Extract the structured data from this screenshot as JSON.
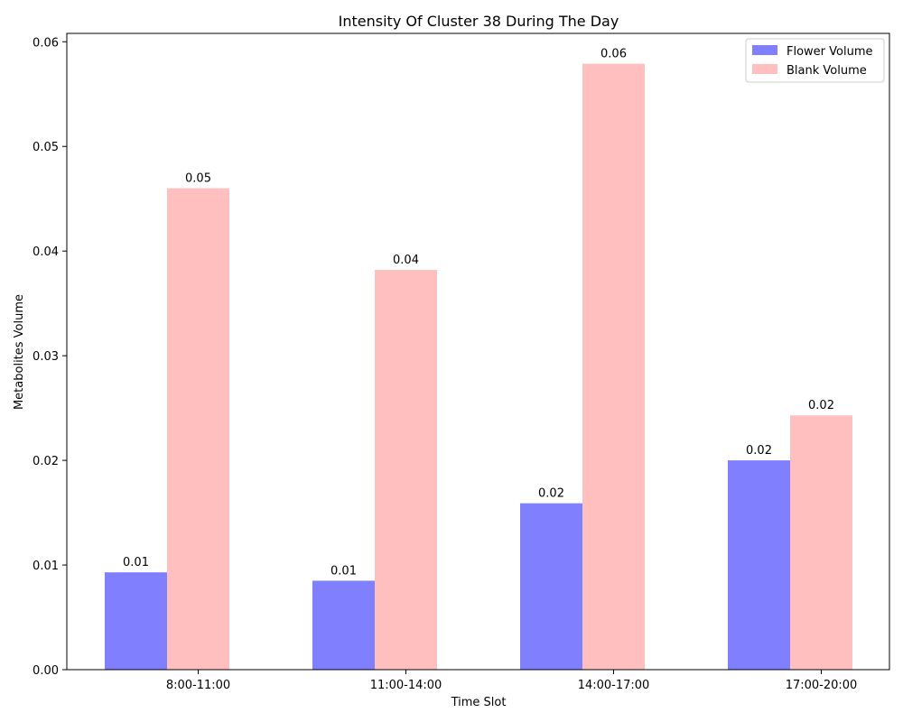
{
  "chart_data": {
    "type": "bar",
    "title": "Intensity Of Cluster 38 During The Day",
    "xlabel": "Time Slot",
    "ylabel": "Metabolites Volume",
    "categories": [
      "8:00-11:00",
      "11:00-14:00",
      "14:00-17:00",
      "17:00-20:00"
    ],
    "series": [
      {
        "name": "Flower Volume",
        "color": "#8080ff",
        "values": [
          0.0093,
          0.0085,
          0.0159,
          0.02
        ],
        "labels": [
          "0.01",
          "0.01",
          "0.02",
          "0.02"
        ]
      },
      {
        "name": "Blank Volume",
        "color": "#ffbfbf",
        "values": [
          0.046,
          0.0382,
          0.0579,
          0.0243
        ],
        "labels": [
          "0.05",
          "0.04",
          "0.06",
          "0.02"
        ]
      }
    ],
    "ylim": [
      0,
      0.0608
    ],
    "yticks": [
      "0.00",
      "0.01",
      "0.02",
      "0.03",
      "0.04",
      "0.05",
      "0.06"
    ],
    "grid": false,
    "legend_position": "top-right"
  }
}
